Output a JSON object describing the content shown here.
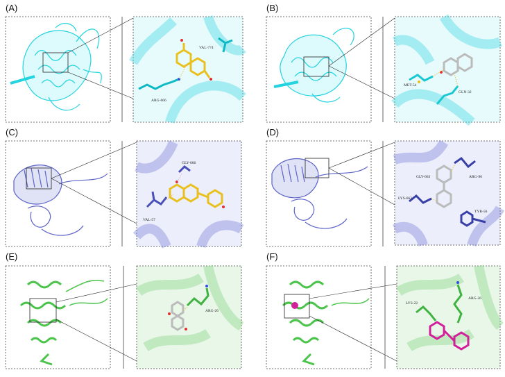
{
  "panels": [
    {
      "label": "(A)",
      "residues": [
        "VAL-774",
        "ARG-666"
      ],
      "protein_color": "#22d3e0",
      "ligand_color": "#f2d21b"
    },
    {
      "label": "(B)",
      "residues": [
        "MET-54",
        "GLN-32"
      ],
      "protein_color": "#22d3e0",
      "ligand_color": "#d8d8d8"
    },
    {
      "label": "(C)",
      "residues": [
        "GLY-666",
        "VAL-57"
      ],
      "protein_color": "#5b63c8",
      "ligand_color": "#f2d21b"
    },
    {
      "label": "(D)",
      "residues": [
        "GLY-663",
        "ARG-96",
        "LYS-663",
        "TYR-56"
      ],
      "protein_color": "#5b63c8",
      "ligand_color": "#d8d8d8"
    },
    {
      "label": "(E)",
      "residues": [
        "ARG-26"
      ],
      "protein_color": "#4bc44b",
      "ligand_color": "#d8d8d8"
    },
    {
      "label": "(F)",
      "residues": [
        "LYS-22",
        "ARG-26"
      ],
      "protein_color": "#4bc44b",
      "ligand_color": "#d21f9a"
    }
  ]
}
